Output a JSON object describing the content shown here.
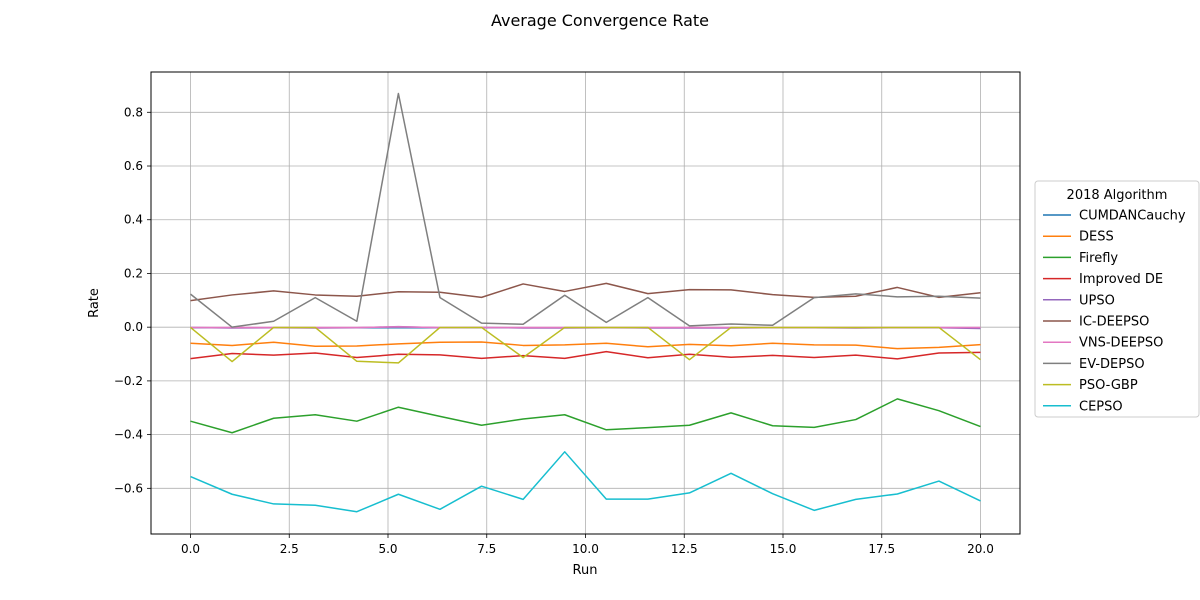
{
  "chart_data": {
    "type": "line",
    "title": "Average Convergence Rate",
    "xlabel": "Run",
    "ylabel": "Rate",
    "xlim": [
      -1.0,
      21.0
    ],
    "ylim": [
      -0.77,
      0.95
    ],
    "xticks": [
      0.0,
      2.5,
      5.0,
      7.5,
      10.0,
      12.5,
      15.0,
      17.5,
      20.0
    ],
    "xtick_labels": [
      "0.0",
      "2.5",
      "5.0",
      "7.5",
      "10.0",
      "12.5",
      "15.0",
      "17.5",
      "20.0"
    ],
    "yticks": [
      -0.6,
      -0.4,
      -0.2,
      0.0,
      0.2,
      0.4,
      0.6,
      0.8
    ],
    "ytick_labels": [
      "−0.6",
      "−0.4",
      "−0.2",
      "0.0",
      "0.2",
      "0.4",
      "0.6",
      "0.8"
    ],
    "grid": true,
    "legend_title": "2018 Algorithm",
    "legend_position": "right outside",
    "x": [
      0.0,
      1.053,
      2.105,
      3.158,
      4.211,
      5.263,
      6.316,
      7.368,
      8.421,
      9.474,
      10.526,
      11.579,
      12.632,
      13.684,
      14.737,
      15.789,
      16.842,
      17.895,
      18.947,
      20.0
    ],
    "series": [
      {
        "name": "CUMDANCauchy",
        "color": "#1f77b4",
        "values": [
          -0.002,
          -0.002,
          -0.002,
          -0.002,
          -0.002,
          -0.002,
          -0.002,
          -0.002,
          -0.002,
          -0.002,
          -0.002,
          -0.002,
          -0.002,
          -0.002,
          -0.002,
          -0.002,
          -0.002,
          -0.002,
          -0.002,
          -0.002
        ]
      },
      {
        "name": "DESS",
        "color": "#ff7f0e",
        "values": [
          -0.06,
          -0.068,
          -0.056,
          -0.071,
          -0.07,
          -0.062,
          -0.056,
          -0.055,
          -0.068,
          -0.066,
          -0.06,
          -0.073,
          -0.064,
          -0.069,
          -0.06,
          -0.066,
          -0.067,
          -0.08,
          -0.075,
          -0.065
        ]
      },
      {
        "name": "Firefly",
        "color": "#2ca02c",
        "values": [
          -0.35,
          -0.393,
          -0.339,
          -0.326,
          -0.35,
          -0.298,
          -0.332,
          -0.365,
          -0.342,
          -0.326,
          -0.382,
          -0.374,
          -0.365,
          -0.319,
          -0.367,
          -0.373,
          -0.344,
          -0.267,
          -0.311,
          -0.37
        ]
      },
      {
        "name": "Improved DE",
        "color": "#d62728",
        "values": [
          -0.117,
          -0.098,
          -0.104,
          -0.096,
          -0.113,
          -0.101,
          -0.103,
          -0.116,
          -0.106,
          -0.116,
          -0.091,
          -0.114,
          -0.101,
          -0.112,
          -0.105,
          -0.113,
          -0.104,
          -0.118,
          -0.096,
          -0.094
        ]
      },
      {
        "name": "UPSO",
        "color": "#9467bd",
        "values": [
          -0.001,
          -0.003,
          -0.002,
          -0.003,
          -0.002,
          0.002,
          -0.002,
          -0.001,
          -0.003,
          -0.003,
          -0.002,
          -0.003,
          -0.003,
          -0.003,
          -0.002,
          -0.002,
          -0.003,
          -0.002,
          -0.002,
          -0.005
        ]
      },
      {
        "name": "IC-DEEPSO",
        "color": "#8c564b",
        "values": [
          0.099,
          0.12,
          0.135,
          0.12,
          0.115,
          0.132,
          0.13,
          0.111,
          0.161,
          0.133,
          0.163,
          0.125,
          0.14,
          0.139,
          0.121,
          0.111,
          0.115,
          0.148,
          0.111,
          0.128
        ]
      },
      {
        "name": "VNS-DEEPSO",
        "color": "#e377c2",
        "values": [
          -0.001,
          -0.001,
          -0.001,
          -0.001,
          -0.001,
          0.001,
          -0.001,
          -0.001,
          -0.001,
          -0.001,
          -0.001,
          -0.001,
          -0.001,
          -0.001,
          -0.001,
          -0.001,
          -0.001,
          -0.001,
          -0.001,
          -0.001
        ]
      },
      {
        "name": "EV-DEPSO",
        "color": "#7f7f7f",
        "values": [
          0.123,
          0.0,
          0.022,
          0.11,
          0.022,
          0.87,
          0.11,
          0.015,
          0.011,
          0.119,
          0.018,
          0.11,
          0.005,
          0.012,
          0.007,
          0.11,
          0.124,
          0.113,
          0.115,
          0.108
        ]
      },
      {
        "name": "PSO-GBP",
        "color": "#bcbd22",
        "values": [
          -0.001,
          -0.128,
          -0.001,
          -0.001,
          -0.127,
          -0.133,
          -0.001,
          -0.001,
          -0.113,
          -0.001,
          -0.001,
          -0.001,
          -0.121,
          -0.001,
          -0.001,
          -0.001,
          -0.001,
          -0.001,
          -0.001,
          -0.121
        ]
      },
      {
        "name": "CEPSO",
        "color": "#17becf",
        "values": [
          -0.556,
          -0.622,
          -0.658,
          -0.663,
          -0.687,
          -0.622,
          -0.678,
          -0.592,
          -0.641,
          -0.464,
          -0.64,
          -0.64,
          -0.617,
          -0.544,
          -0.62,
          -0.682,
          -0.641,
          -0.621,
          -0.573,
          -0.647
        ]
      }
    ]
  }
}
